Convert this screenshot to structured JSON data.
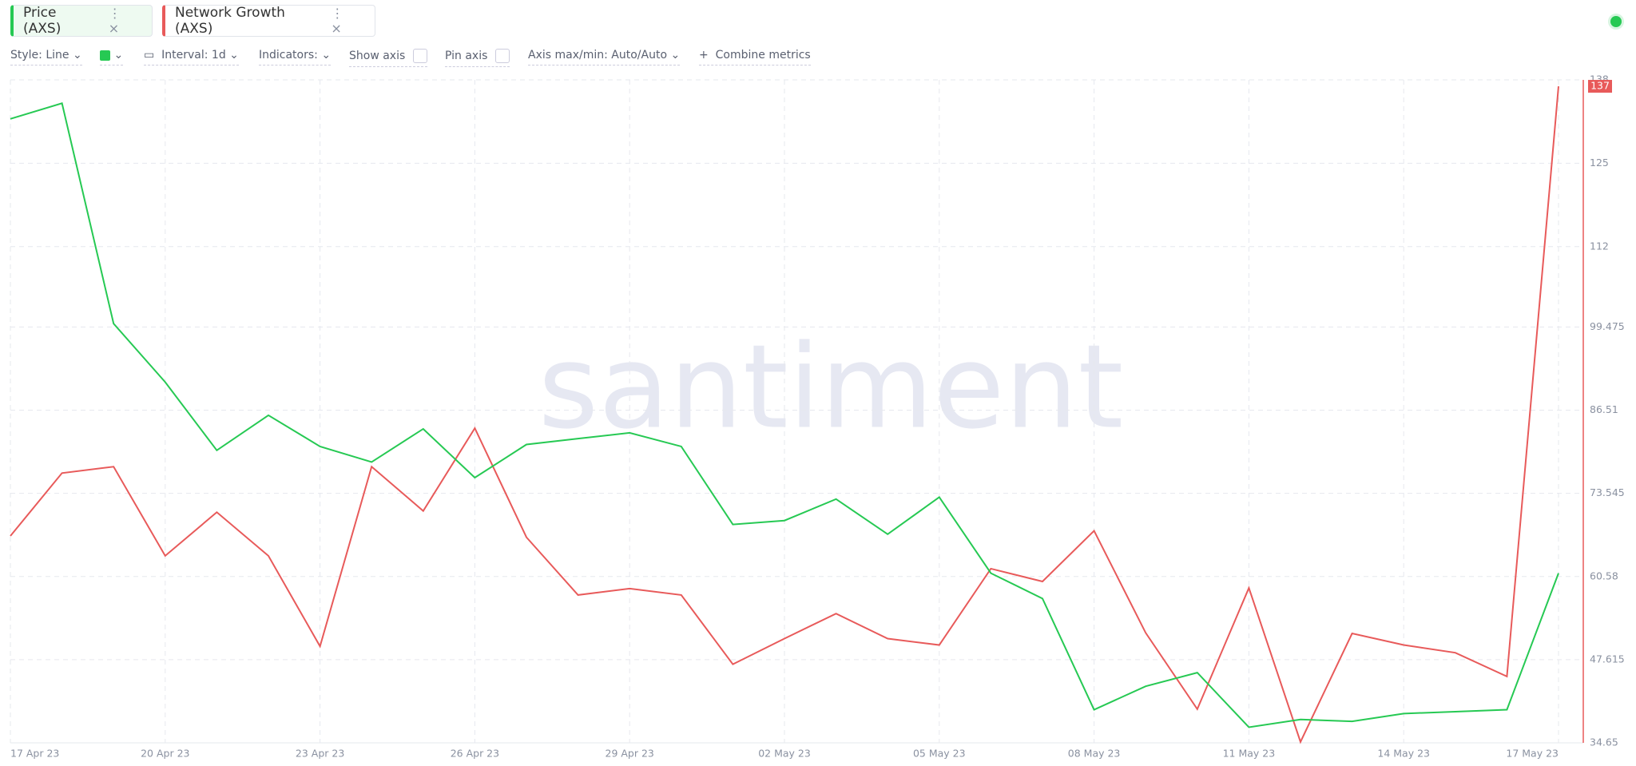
{
  "ui": {
    "tabs": [
      "Price (AXS)",
      "Network Growth (AXS)"
    ],
    "toolbar": {
      "style": "Style: Line",
      "interval": "Interval: 1d",
      "indicators": "Indicators:",
      "show_axis": "Show axis",
      "pin_axis": "Pin axis",
      "axis_maxmin": "Axis max/min: Auto/Auto",
      "combine": "Combine metrics"
    },
    "watermark": "santiment"
  },
  "chart_data": {
    "type": "line",
    "categories": [
      "17 Apr 23",
      null,
      null,
      "20 Apr 23",
      null,
      null,
      "23 Apr 23",
      null,
      null,
      "26 Apr 23",
      null,
      null,
      "29 Apr 23",
      null,
      null,
      "02 May 23",
      null,
      null,
      "05 May 23",
      null,
      null,
      "08 May 23",
      null,
      null,
      "11 May 23",
      null,
      null,
      "14 May 23",
      null,
      null,
      "17 May 23"
    ],
    "ylim": [
      34.65,
      138
    ],
    "yticks": [
      34.65,
      47.615,
      60.58,
      73.545,
      86.51,
      99.475,
      112,
      125,
      138
    ],
    "y2lim": [
      6.4,
      9.8
    ],
    "grid": true,
    "series": [
      {
        "name": "Network Growth (AXS)",
        "color": "#e85a5a",
        "values": [
          66.9,
          76.7,
          77.7,
          63.8,
          70.6,
          63.8,
          49.7,
          77.7,
          70.8,
          83.7,
          66.7,
          57.7,
          58.7,
          57.7,
          46.9,
          50.9,
          54.8,
          50.9,
          49.9,
          61.8,
          59.8,
          67.7,
          51.8,
          39.9,
          58.8,
          34.8,
          51.7,
          49.9,
          48.7,
          45.0,
          137
        ]
      },
      {
        "name": "Price (AXS)",
        "color": "#26c953",
        "axis": "y2",
        "values": [
          9.6,
          9.68,
          8.55,
          8.25,
          7.9,
          8.08,
          7.92,
          7.84,
          8.01,
          7.76,
          7.93,
          7.96,
          7.99,
          7.92,
          7.52,
          7.54,
          7.65,
          7.47,
          7.66,
          7.27,
          7.14,
          6.57,
          6.69,
          6.76,
          6.48,
          6.52,
          6.51,
          6.55,
          6.56,
          6.57,
          7.27
        ]
      }
    ]
  }
}
